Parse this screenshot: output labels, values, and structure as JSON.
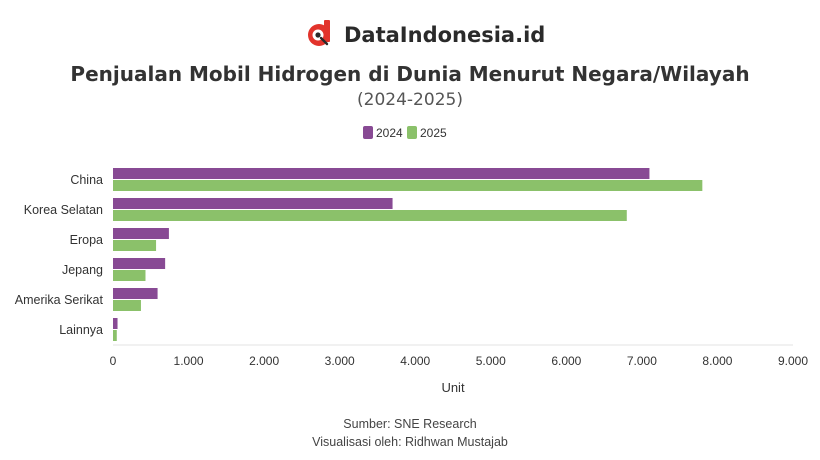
{
  "brand": {
    "name": "DataIndonesia.id",
    "logo_letter": "d"
  },
  "footer": {
    "source": "Sumber: SNE Research",
    "credit": "Visualisasi oleh: Ridhwan Mustajab"
  },
  "colors": {
    "s2024": "#884a94",
    "s2025": "#8bc16a",
    "brand_red": "#e2332b"
  },
  "chart_data": {
    "type": "bar",
    "orientation": "horizontal",
    "title": "Penjualan Mobil Hidrogen di Dunia Menurut Negara/Wilayah",
    "subtitle": "(2024-2025)",
    "categories": [
      "China",
      "Korea Selatan",
      "Eropa",
      "Jepang",
      "Amerika Serikat",
      "Lainnya"
    ],
    "series": [
      {
        "name": "2024",
        "values": [
          7100,
          3700,
          740,
          690,
          590,
          60
        ]
      },
      {
        "name": "2025",
        "values": [
          7800,
          6800,
          570,
          430,
          370,
          50
        ]
      }
    ],
    "xlabel": "Unit",
    "ylabel": "",
    "xlim": [
      0,
      9000
    ],
    "ticks": [
      0,
      1000,
      2000,
      3000,
      4000,
      5000,
      6000,
      7000,
      8000,
      9000
    ],
    "tick_labels": [
      "0",
      "1.000",
      "2.000",
      "3.000",
      "4.000",
      "5.000",
      "6.000",
      "7.000",
      "8.000",
      "9.000"
    ],
    "grid": false,
    "legend": "top-center"
  }
}
